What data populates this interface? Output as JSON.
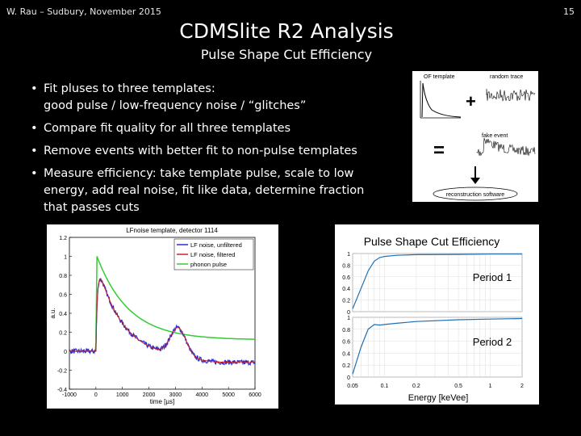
{
  "header": {
    "left": "W. Rau – Sudbury, November 2015",
    "page_number": "15"
  },
  "title": "CDMSlite R2 Analysis",
  "subtitle": "Pulse Shape Cut Efficiency",
  "bullets": [
    {
      "line1": "Fit pluses to three templates:",
      "line2": "good pulse / low-frequency noise / “glitches”"
    },
    {
      "line1": "Compare fit quality for all three templates",
      "line2": ""
    },
    {
      "line1": "Remove events with better fit to non-pulse templates",
      "line2": ""
    },
    {
      "line1": "Measure efficiency: take template pulse, scale to low",
      "line2": "energy, add real noise, fit like data, determine fraction",
      "line3": "that passes cuts"
    }
  ],
  "bullet_symbol": "•",
  "schematic": {
    "of_template": "OF template",
    "random_trace": "random trace",
    "plus": "+",
    "equals": "=",
    "fake_event": "fake event",
    "reconstruction": "reconstruction software"
  },
  "lf_plot": {
    "chart_data": {
      "type": "line",
      "title": "LFnoise template, detector 1114",
      "xlabel": "time [µs]",
      "ylabel": "a.u.",
      "xlim": [
        -1000,
        6000
      ],
      "ylim": [
        -0.4,
        1.2
      ],
      "x_ticks": [
        "-1000",
        "0",
        "1000",
        "2000",
        "3000",
        "4000",
        "5000",
        "6000"
      ],
      "y_ticks": [
        "-0.4",
        "-0.2",
        "0",
        "0.2",
        "0.4",
        "0.6",
        "0.8",
        "1",
        "1.2"
      ],
      "legend_position": "top-right",
      "series": [
        {
          "name": "LF noise, unfiltered",
          "color": "#2b2bd6"
        },
        {
          "name": "LF noise, filtered",
          "color": "#cc2222"
        },
        {
          "name": "phonon pulse",
          "color": "#33cc33"
        }
      ]
    }
  },
  "efficiency_plot": {
    "chart_data": {
      "type": "line",
      "title": "Pulse Shape Cut Efficiency",
      "xlabel": "Energy [keVee]",
      "x_scale": "log",
      "x_ticks": [
        "0.05",
        "0.1",
        "0.2",
        "0.5",
        "1",
        "2"
      ],
      "y_ticks": [
        "0",
        "0.2",
        "0.4",
        "0.6",
        "0.8",
        "1"
      ],
      "panels": [
        {
          "label": "Period 1",
          "x": [
            0.05,
            0.06,
            0.07,
            0.08,
            0.09,
            0.1,
            0.13,
            0.2,
            0.5,
            1,
            2
          ],
          "y": [
            0.05,
            0.4,
            0.7,
            0.87,
            0.93,
            0.95,
            0.97,
            0.98,
            0.985,
            0.99,
            0.99
          ]
        },
        {
          "label": "Period 2",
          "x": [
            0.05,
            0.06,
            0.07,
            0.08,
            0.09,
            0.1,
            0.13,
            0.2,
            0.5,
            1,
            2
          ],
          "y": [
            0.05,
            0.5,
            0.8,
            0.88,
            0.87,
            0.88,
            0.9,
            0.93,
            0.96,
            0.97,
            0.98
          ]
        }
      ]
    }
  }
}
